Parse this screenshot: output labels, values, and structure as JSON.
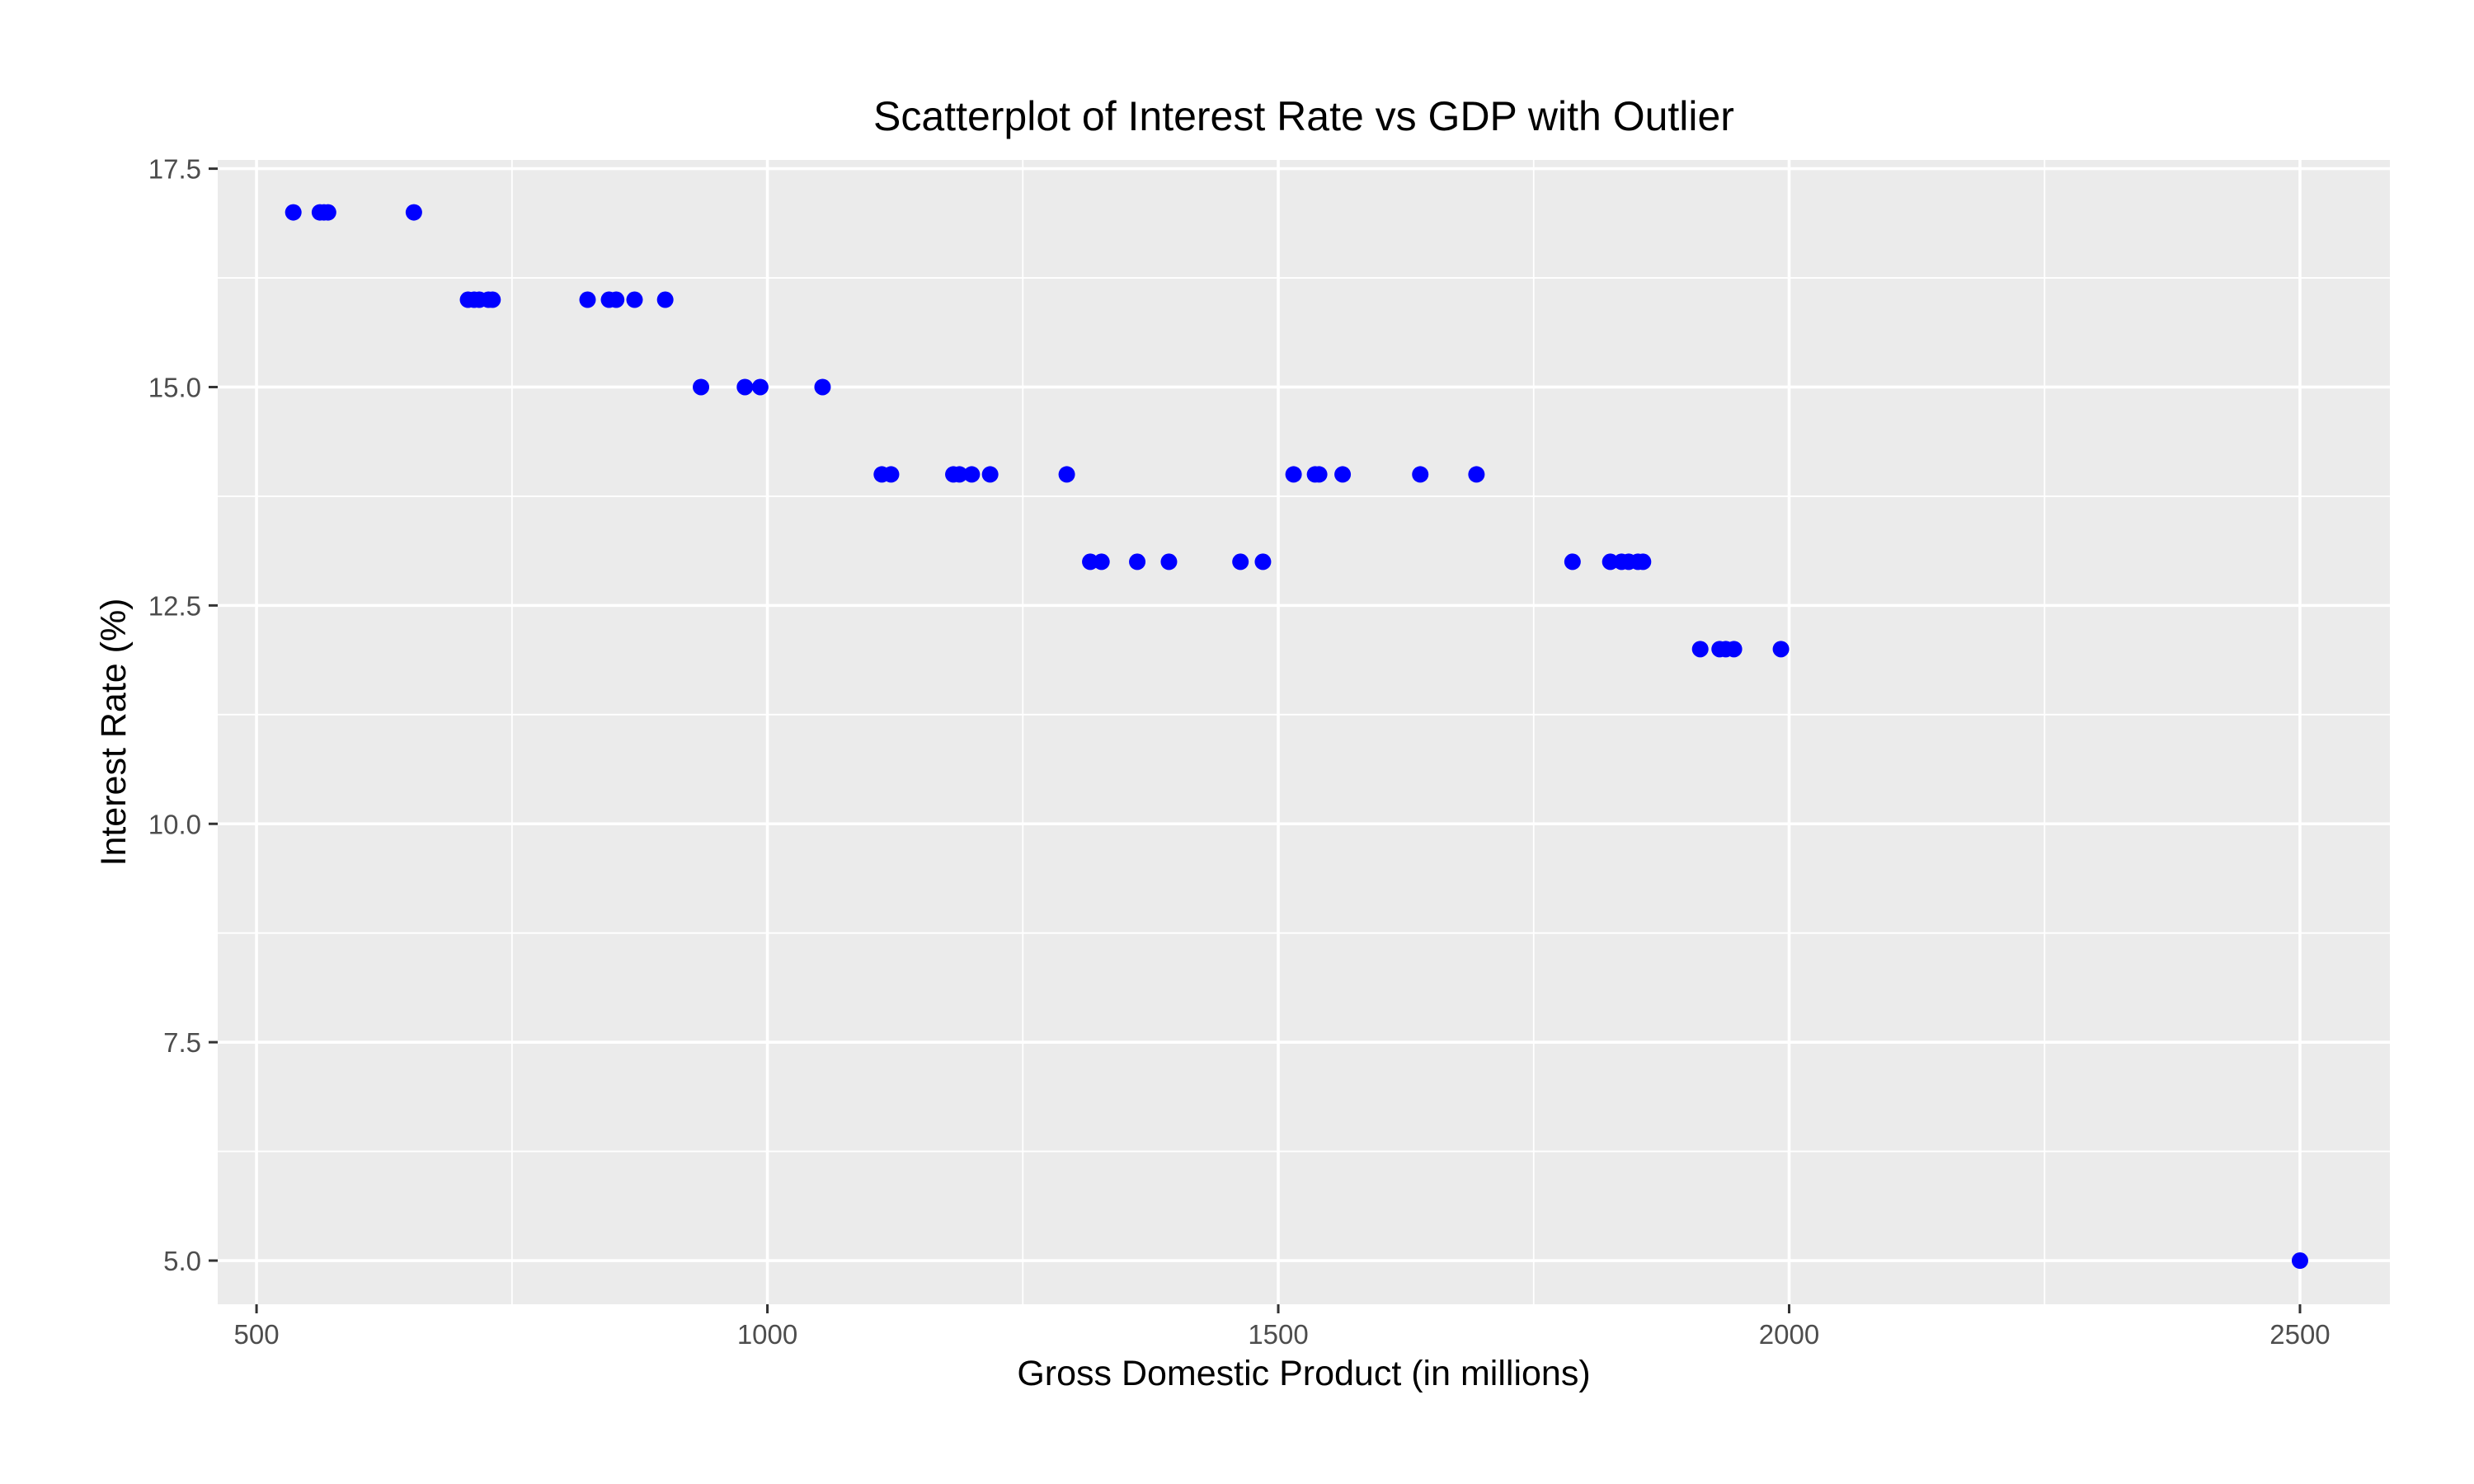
{
  "chart_data": {
    "type": "scatter",
    "title": "Scatterplot of Interest Rate vs GDP with Outlier",
    "xlabel": "Gross Domestic Product (in millions)",
    "ylabel": "Interest Rate (%)",
    "xlim": [
      462,
      2588
    ],
    "ylim": [
      4.5,
      17.6
    ],
    "x_ticks": [
      500,
      1000,
      1500,
      2000,
      2500
    ],
    "x_tick_labels": [
      "500",
      "1000",
      "1500",
      "2000",
      "2500"
    ],
    "y_ticks": [
      5.0,
      7.5,
      10.0,
      12.5,
      15.0,
      17.5
    ],
    "y_tick_labels": [
      "5.0",
      "7.5",
      "10.0",
      "12.5",
      "15.0",
      "17.5"
    ],
    "grid": true,
    "point_color": "#0000ff",
    "panel_color": "#ebebeb",
    "series": [
      {
        "points": [
          [
            536,
            17
          ],
          [
            562,
            17
          ],
          [
            566,
            17
          ],
          [
            570,
            17
          ],
          [
            654,
            17
          ],
          [
            707,
            16
          ],
          [
            713,
            16
          ],
          [
            718,
            16
          ],
          [
            727,
            16
          ],
          [
            731,
            16
          ],
          [
            824,
            16
          ],
          [
            845,
            16
          ],
          [
            852,
            16
          ],
          [
            870,
            16
          ],
          [
            900,
            16
          ],
          [
            935,
            15
          ],
          [
            978,
            15
          ],
          [
            993,
            15
          ],
          [
            1054,
            15
          ],
          [
            1112,
            14
          ],
          [
            1121,
            14
          ],
          [
            1182,
            14
          ],
          [
            1188,
            14
          ],
          [
            1200,
            14
          ],
          [
            1218,
            14
          ],
          [
            1293,
            14
          ],
          [
            1316,
            13
          ],
          [
            1327,
            13
          ],
          [
            1362,
            13
          ],
          [
            1393,
            13
          ],
          [
            1463,
            13
          ],
          [
            1485,
            13
          ],
          [
            1515,
            14
          ],
          [
            1536,
            14
          ],
          [
            1540,
            14
          ],
          [
            1563,
            14
          ],
          [
            1639,
            14
          ],
          [
            1694,
            14
          ],
          [
            1788,
            13
          ],
          [
            1825,
            13
          ],
          [
            1836,
            13
          ],
          [
            1843,
            13
          ],
          [
            1852,
            13
          ],
          [
            1857,
            13
          ],
          [
            1913,
            12
          ],
          [
            1932,
            12
          ],
          [
            1938,
            12
          ],
          [
            1946,
            12
          ],
          [
            1992,
            12
          ],
          [
            2500,
            5
          ]
        ]
      }
    ]
  }
}
